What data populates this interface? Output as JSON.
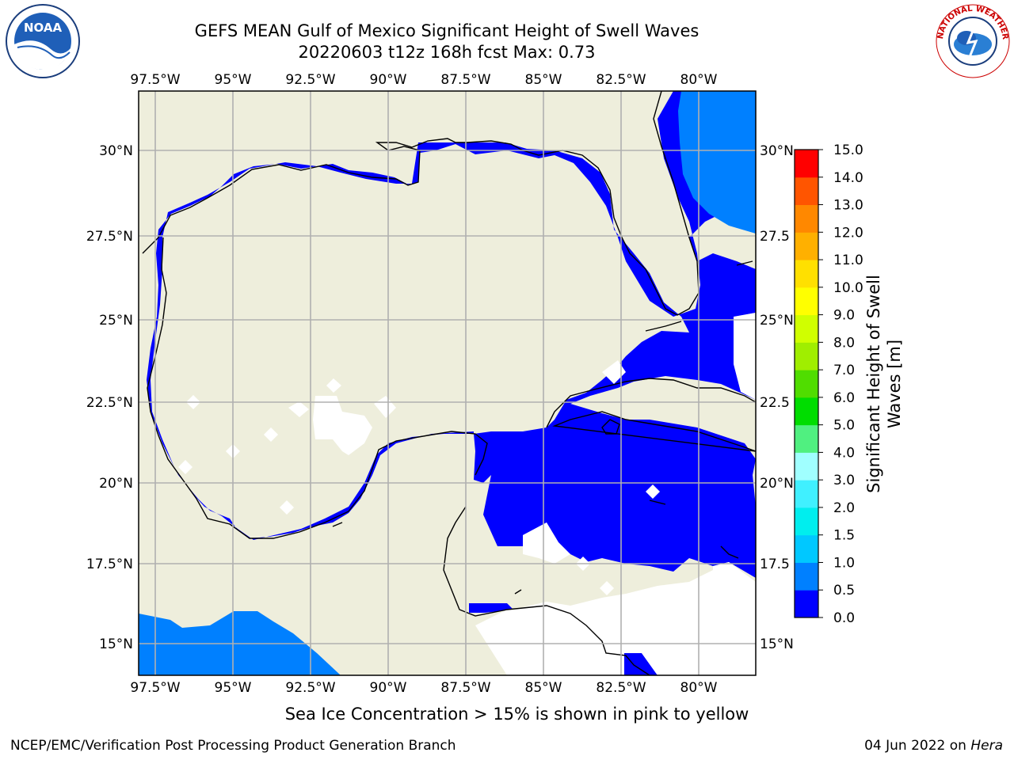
{
  "title": {
    "line1": "GEFS MEAN Gulf of Mexico Significant Height of Swell Waves",
    "line2": "20220603 t12z 168h fcst   Max: 0.73"
  },
  "map": {
    "lon_labels": [
      "97.5°W",
      "95°W",
      "92.5°W",
      "90°W",
      "87.5°W",
      "85°W",
      "82.5°W",
      "80°W"
    ],
    "lat_labels_left": [
      "30°N",
      "27.5°N",
      "25°N",
      "22.5°N",
      "20°N",
      "17.5°N",
      "15°N"
    ],
    "lat_labels_right": [
      "30°N",
      "27.5",
      "25°N",
      "22.5",
      "20°N",
      "17.5",
      "15°N"
    ],
    "land_color": "#eeeedc",
    "gridline_color": "#b0b0b0"
  },
  "colorbar": {
    "ticks": [
      "0.0",
      "0.5",
      "1.0",
      "1.5",
      "2.0",
      "3.0",
      "4.0",
      "5.0",
      "6.0",
      "7.0",
      "8.0",
      "9.0",
      "10.0",
      "11.0",
      "12.0",
      "13.0",
      "14.0",
      "15.0"
    ],
    "colors": [
      "#0000ff",
      "#0080ff",
      "#00c8ff",
      "#00eeee",
      "#40f0ff",
      "#a0ffff",
      "#50f080",
      "#00dd00",
      "#50dd00",
      "#a0ee00",
      "#d0ff00",
      "#ffff00",
      "#ffe000",
      "#ffb000",
      "#ff8800",
      "#ff5500",
      "#ff0000"
    ],
    "label_line1": "Significant Height of Swell",
    "label_line2": "Waves [m]"
  },
  "logos": {
    "noaa_text": "NOAA",
    "nws_text": "NATIONAL WEATHER SERVICE"
  },
  "note": "Sea Ice Concentration > 15% is shown in pink to yellow",
  "footer": {
    "left": "NCEP/EMC/Verification Post Processing Product Generation Branch",
    "date": "04 Jun 2022 on",
    "machine": "Hera"
  }
}
